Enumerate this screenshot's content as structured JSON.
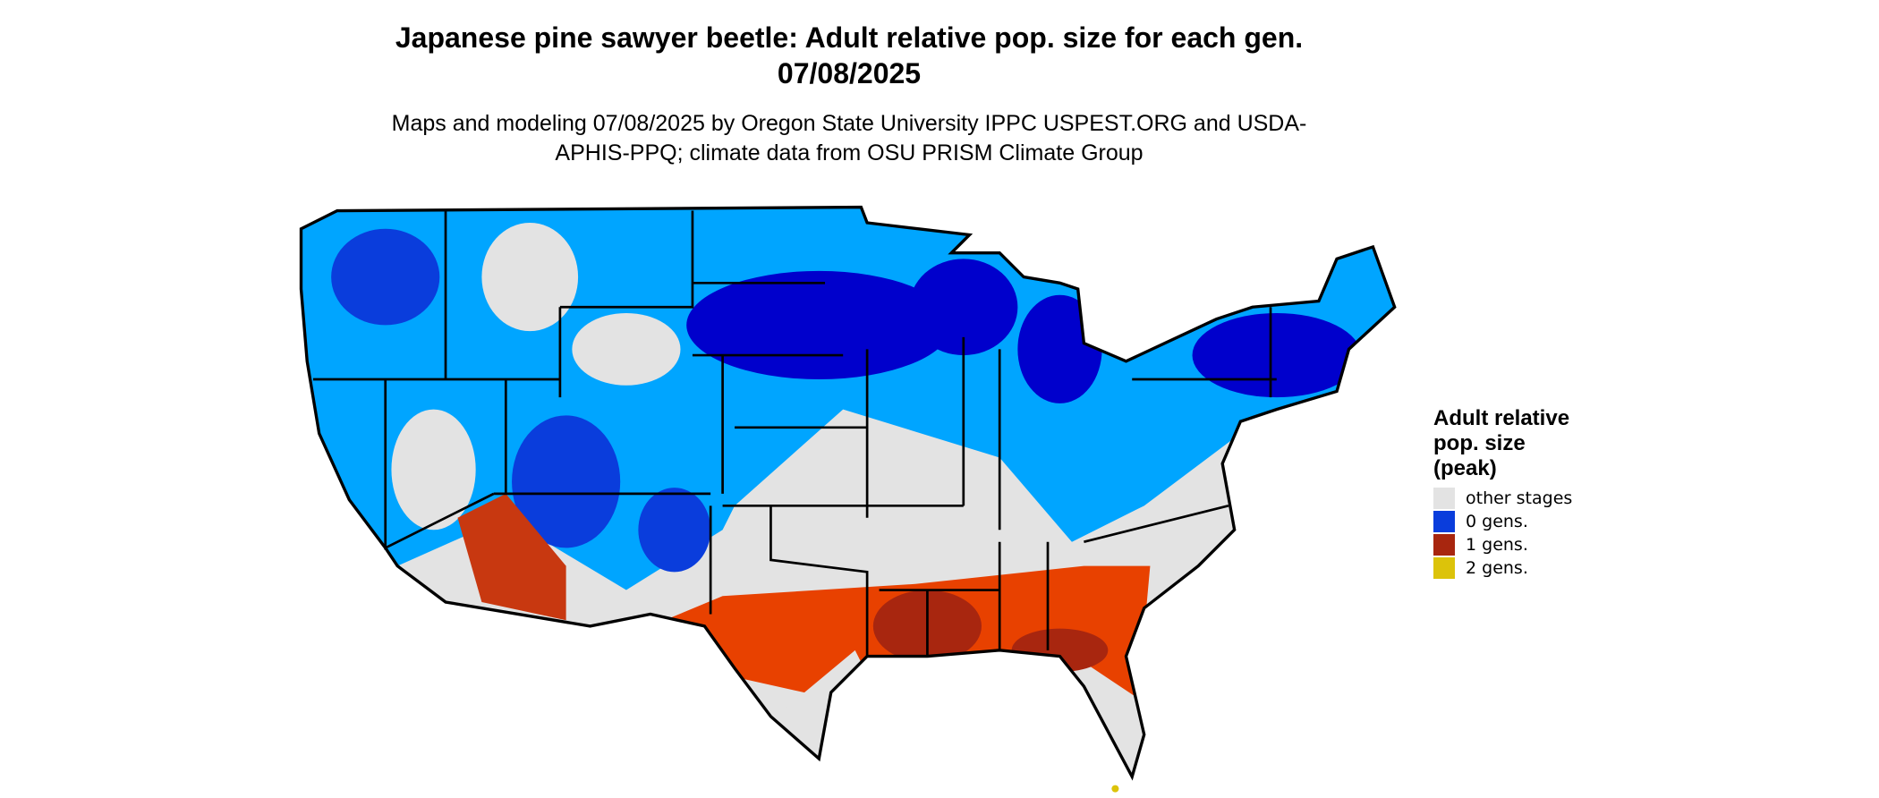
{
  "title": "Japanese pine sawyer beetle: Adult relative pop. size for each gen. 07/08/2025",
  "subtitle": "Maps and modeling 07/08/2025 by Oregon State University IPPC USPEST.ORG and USDA-APHIS-PPQ; climate data from OSU PRISM Climate Group",
  "legend": {
    "title": "Adult relative pop. size (peak)",
    "items": [
      {
        "label": "other stages",
        "color": "#e3e3e3"
      },
      {
        "label": "0 gens.",
        "color": "#0a3ddc"
      },
      {
        "label": "1 gens.",
        "color": "#a8260f"
      },
      {
        "label": "2 gens.",
        "color": "#dcc30a"
      }
    ]
  }
}
